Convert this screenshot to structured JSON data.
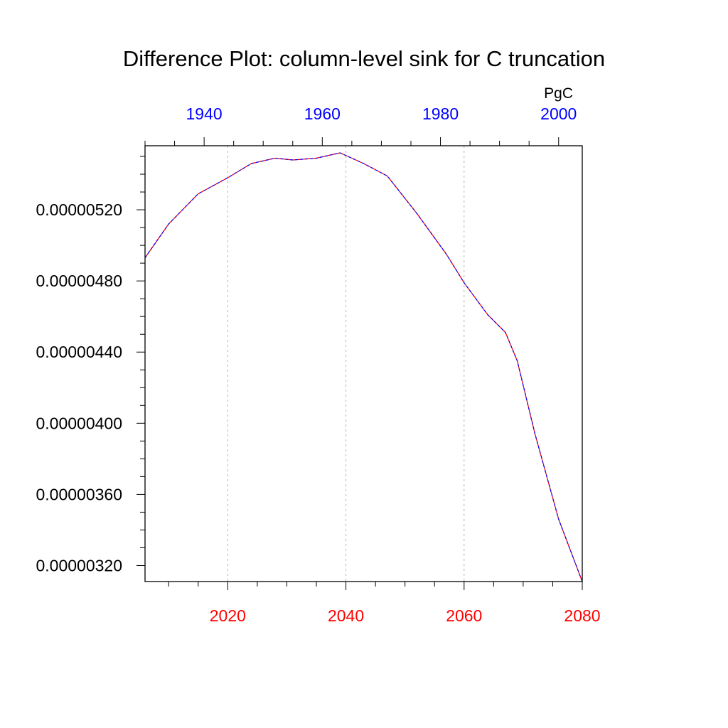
{
  "chart_data": {
    "type": "line",
    "title": "Difference Plot: column-level sink for C truncation",
    "top_axis_unit": "PgC",
    "xlabel": "",
    "ylabel": "",
    "grid": "vertical dashed at bottom-axis major ticks",
    "x_bottom": {
      "range": [
        2006,
        2080
      ],
      "ticks": [
        2020,
        2040,
        2060,
        2080
      ],
      "tick_labels": [
        "2020",
        "2040",
        "2060",
        "2080"
      ],
      "color": "#ff0000"
    },
    "x_top": {
      "range": [
        1930,
        2004
      ],
      "ticks": [
        1940,
        1960,
        1980,
        2000
      ],
      "tick_labels": [
        "1940",
        "1960",
        "1980",
        "2000"
      ],
      "color": "#0000ff"
    },
    "y": {
      "range": [
        3.11e-06,
        5.56e-06
      ],
      "ticks": [
        3.2e-06,
        3.6e-06,
        4e-06,
        4.4e-06,
        4.8e-06,
        5.2e-06
      ],
      "tick_labels": [
        "0.00000320",
        "0.00000360",
        "0.00000400",
        "0.00000440",
        "0.00000480",
        "0.00000520"
      ]
    },
    "series": [
      {
        "color": "#ff0000",
        "style": "solid",
        "x": [
          2006,
          2010,
          2015,
          2020,
          2024,
          2028,
          2031,
          2035,
          2039,
          2043,
          2047,
          2052,
          2057,
          2060,
          2064,
          2067,
          2069,
          2072,
          2076,
          2080
        ],
        "y": [
          4.93e-06,
          5.12e-06,
          5.29e-06,
          5.38e-06,
          5.46e-06,
          5.49e-06,
          5.48e-06,
          5.49e-06,
          5.52e-06,
          5.46e-06,
          5.39e-06,
          5.18e-06,
          4.95e-06,
          4.79e-06,
          4.61e-06,
          4.51e-06,
          4.35e-06,
          3.94e-06,
          3.46e-06,
          3.11e-06
        ]
      },
      {
        "color": "#0000ff",
        "style": "dashed",
        "x": [
          2006,
          2010,
          2015,
          2020,
          2024,
          2028,
          2031,
          2035,
          2039,
          2043,
          2047,
          2052,
          2057,
          2060,
          2064,
          2067,
          2069,
          2072,
          2076,
          2080
        ],
        "y": [
          4.93e-06,
          5.12e-06,
          5.29e-06,
          5.38e-06,
          5.46e-06,
          5.49e-06,
          5.48e-06,
          5.49e-06,
          5.52e-06,
          5.46e-06,
          5.39e-06,
          5.18e-06,
          4.95e-06,
          4.79e-06,
          4.61e-06,
          4.51e-06,
          4.35e-06,
          3.94e-06,
          3.46e-06,
          3.11e-06
        ]
      }
    ]
  }
}
